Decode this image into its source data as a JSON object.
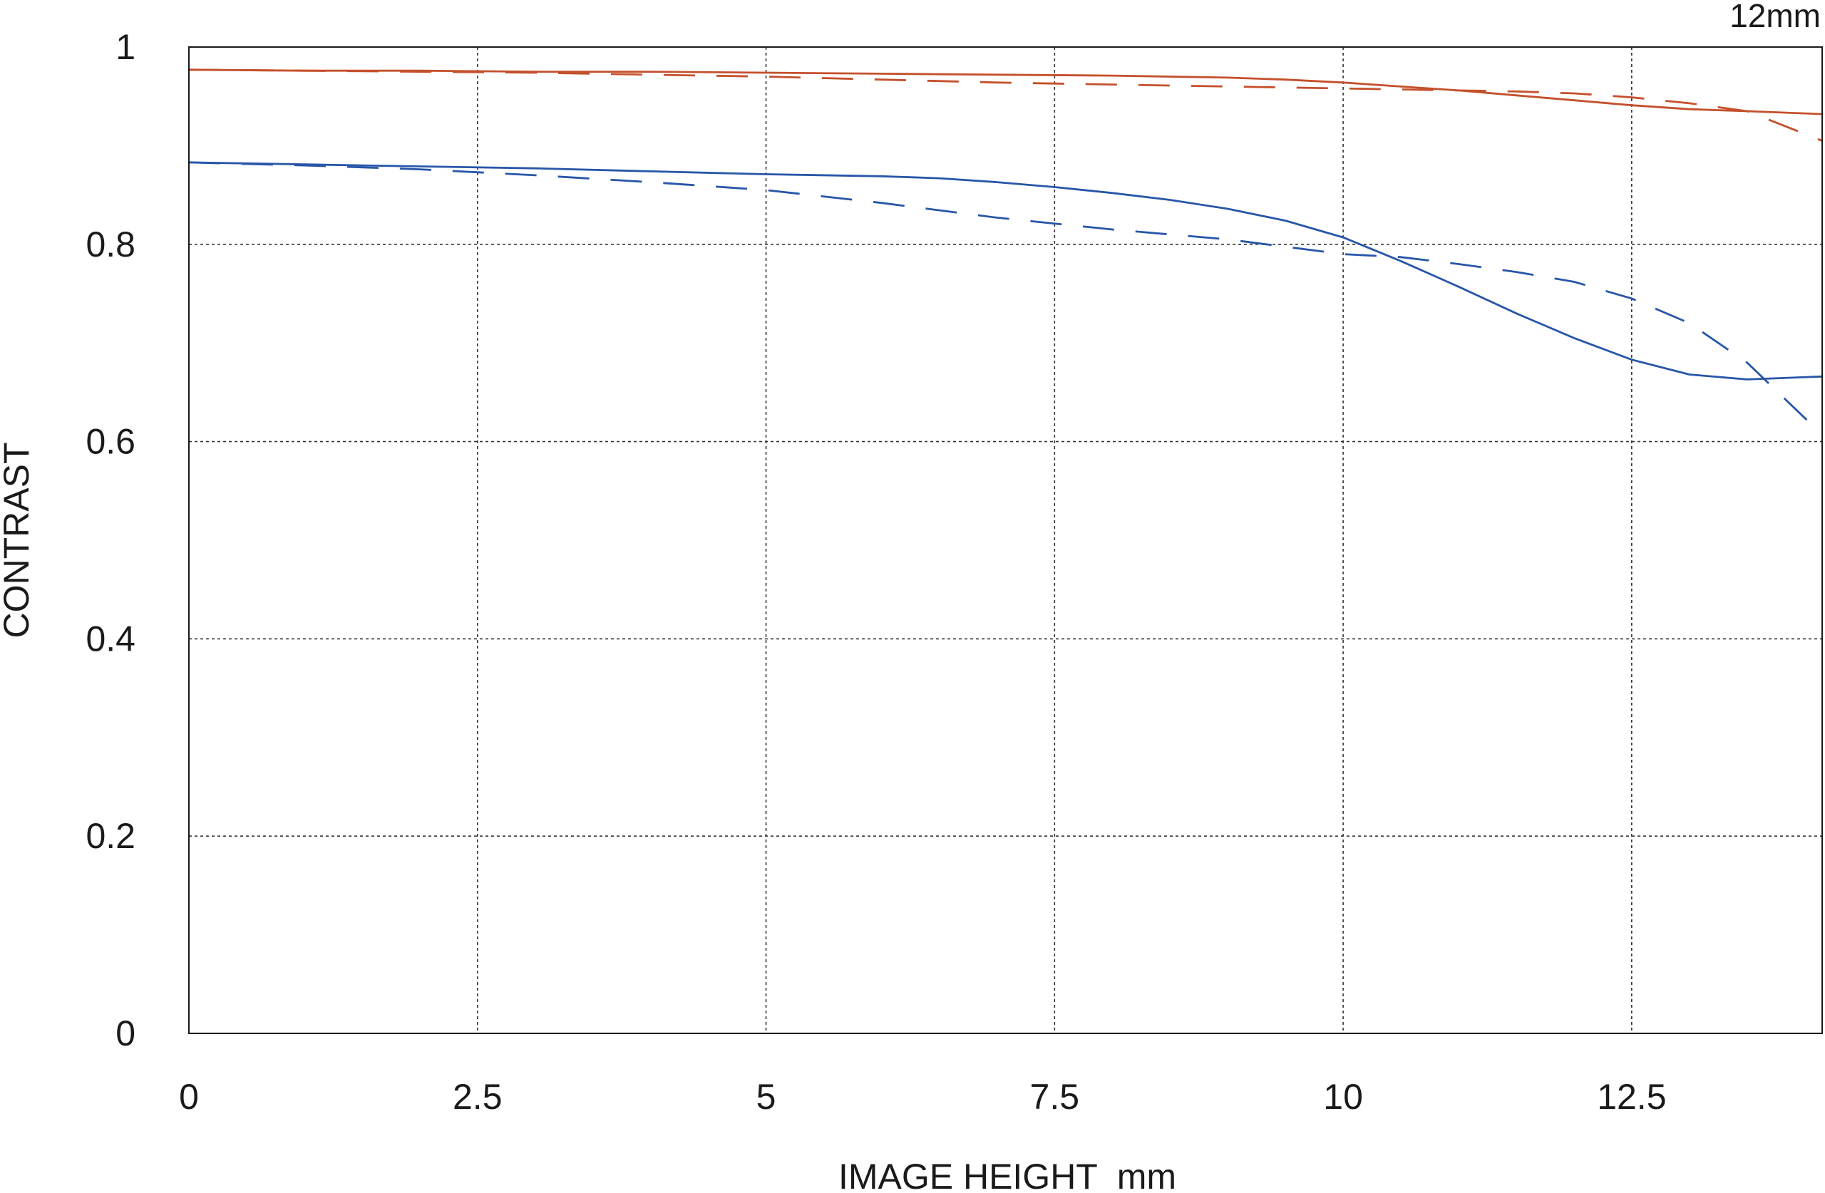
{
  "chart_data": {
    "type": "line",
    "title": "",
    "corner_label": "12mm",
    "xlabel": "IMAGE HEIGHT  mm",
    "ylabel": "CONTRAST",
    "xlim": [
      0,
      14.15
    ],
    "ylim": [
      0,
      1
    ],
    "x_ticks": [
      0,
      2.5,
      5,
      7.5,
      10,
      12.5
    ],
    "x_tick_labels": [
      "0",
      "2.5",
      "5",
      "7.5",
      "10",
      "12.5"
    ],
    "y_ticks": [
      0,
      0.2,
      0.4,
      0.6,
      0.8,
      1
    ],
    "y_tick_labels": [
      "0",
      "0.2",
      "0.4",
      "0.6",
      "0.8",
      "1"
    ],
    "grid": true,
    "legend": "none",
    "series": [
      {
        "color": "#c4502c",
        "style": "solid",
        "x": [
          0,
          1,
          2,
          3,
          4,
          5,
          6,
          7,
          8,
          9,
          9.5,
          10,
          10.5,
          11,
          11.5,
          12,
          12.5,
          13,
          13.5,
          14.15
        ],
        "y": [
          0.977,
          0.976,
          0.976,
          0.975,
          0.975,
          0.974,
          0.973,
          0.972,
          0.971,
          0.969,
          0.967,
          0.964,
          0.96,
          0.956,
          0.951,
          0.946,
          0.941,
          0.937,
          0.935,
          0.932
        ]
      },
      {
        "color": "#c4502c",
        "style": "dashed",
        "x": [
          0,
          1,
          2,
          3,
          4,
          5,
          6,
          7,
          8,
          9,
          10,
          11,
          11.5,
          12,
          12.5,
          13,
          13.5,
          14.15
        ],
        "y": [
          0.977,
          0.976,
          0.975,
          0.974,
          0.972,
          0.97,
          0.967,
          0.964,
          0.962,
          0.96,
          0.958,
          0.956,
          0.955,
          0.953,
          0.949,
          0.943,
          0.935,
          0.905
        ]
      },
      {
        "color": "#2856a8",
        "style": "solid",
        "x": [
          0,
          1,
          2,
          3,
          4,
          5,
          6,
          6.5,
          7,
          7.5,
          8,
          8.5,
          9,
          9.5,
          10,
          10.5,
          11,
          11.5,
          12,
          12.5,
          13,
          13.5,
          14.15
        ],
        "y": [
          0.883,
          0.881,
          0.879,
          0.877,
          0.874,
          0.871,
          0.869,
          0.867,
          0.863,
          0.858,
          0.852,
          0.845,
          0.836,
          0.824,
          0.807,
          0.783,
          0.757,
          0.73,
          0.705,
          0.683,
          0.668,
          0.663,
          0.666
        ]
      },
      {
        "color": "#2856a8",
        "style": "dashed",
        "x": [
          0,
          1,
          2,
          3,
          4,
          5,
          6,
          7,
          8,
          9,
          10,
          10.5,
          11,
          11.5,
          12,
          12.5,
          13,
          13.5,
          14.15
        ],
        "y": [
          0.883,
          0.88,
          0.876,
          0.87,
          0.863,
          0.855,
          0.842,
          0.827,
          0.815,
          0.805,
          0.79,
          0.787,
          0.78,
          0.772,
          0.762,
          0.745,
          0.72,
          0.68,
          0.607
        ]
      }
    ]
  }
}
